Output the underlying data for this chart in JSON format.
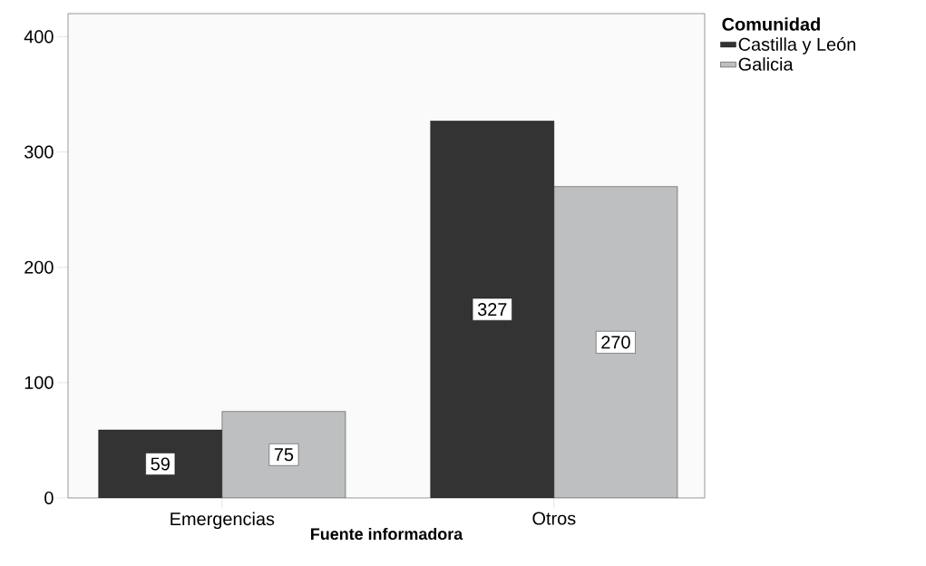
{
  "chart_data": {
    "type": "bar",
    "xlabel": "Fuente informadora",
    "legend_title": "Comunidad",
    "categories": [
      "Emergencias",
      "Otros"
    ],
    "series": [
      {
        "name": "Castilla y León",
        "color": "#333333",
        "values": [
          59,
          327
        ]
      },
      {
        "name": "Galicia",
        "color": "#bebfc1",
        "values": [
          75,
          270
        ]
      }
    ],
    "ylim": [
      0,
      420
    ],
    "yticks": [
      0,
      100,
      200,
      300,
      400
    ],
    "data_labels": true,
    "legend": "top right",
    "grid": false
  }
}
